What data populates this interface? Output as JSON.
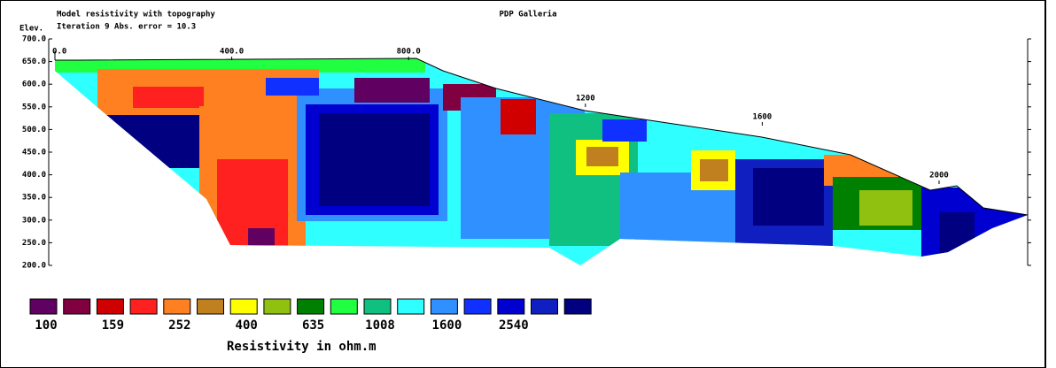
{
  "chart_data": {
    "type": "resistivity-section",
    "title": "PDP Galleria",
    "subtitle": "Model resistivity with topography",
    "annotation": "Iteration 9 Abs. error = 10.3",
    "y_label": "Elev.",
    "ylim": [
      200,
      700
    ],
    "yticks": [
      {
        "value": 700,
        "label": "700.0"
      },
      {
        "value": 650,
        "label": "650.0"
      },
      {
        "value": 600,
        "label": "600.0"
      },
      {
        "value": 550,
        "label": "550.0"
      },
      {
        "value": 500,
        "label": "500.0"
      },
      {
        "value": 450,
        "label": "450.0"
      },
      {
        "value": 400,
        "label": "400.0"
      },
      {
        "value": 350,
        "label": "350.0"
      },
      {
        "value": 300,
        "label": "300.0"
      },
      {
        "value": 250,
        "label": "250.0"
      },
      {
        "value": 200,
        "label": "200.0"
      }
    ],
    "xticks": [
      {
        "value": 0,
        "label": "0.0"
      },
      {
        "value": 400,
        "label": "400.0"
      },
      {
        "value": 800,
        "label": "800.0"
      },
      1200,
      1600,
      2000
    ],
    "legend": {
      "title": "Resistivity in ohm.m",
      "colors": [
        "#600060",
        "#800040",
        "#d00000",
        "#ff2020",
        "#ff8020",
        "#c08020",
        "#ffff00",
        "#90c010",
        "#008000",
        "#20ff40",
        "#10c080",
        "#30ffff",
        "#3090ff",
        "#1030ff",
        "#0000d0",
        "#1020c0",
        "#000080"
      ],
      "values": [
        100,
        159,
        252,
        400,
        635,
        1008,
        1600,
        2540
      ]
    }
  }
}
